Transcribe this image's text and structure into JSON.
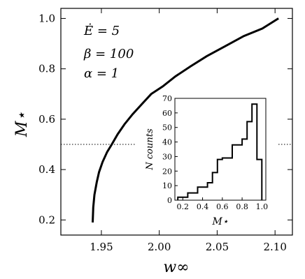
{
  "chart_data": [
    {
      "type": "line",
      "xlabel": "w∞",
      "ylabel": "M⋆",
      "xlim": [
        1.915,
        2.115
      ],
      "ylim": [
        0.14,
        1.04
      ],
      "x_ticks": [
        1.95,
        2.0,
        2.05,
        2.1
      ],
      "x_tick_labels": [
        "1.95",
        "2.00",
        "2.05",
        "2.10"
      ],
      "y_ticks": [
        0.2,
        0.4,
        0.6,
        0.8,
        1.0
      ],
      "y_tick_labels": [
        "0.2",
        "0.4",
        "0.6",
        "0.8",
        "1.0"
      ],
      "parameters": [
        "Ė = 5",
        "β = 100",
        "α = 1"
      ],
      "reference_line": {
        "y": 0.5,
        "style": "dotted"
      },
      "series": [
        {
          "points": [
            [
              1.9425,
              0.19
            ],
            [
              1.943,
              0.25
            ],
            [
              1.944,
              0.3
            ],
            [
              1.946,
              0.35
            ],
            [
              1.948,
              0.39
            ],
            [
              1.951,
              0.43
            ],
            [
              1.955,
              0.47
            ],
            [
              1.959,
              0.5
            ],
            [
              1.964,
              0.54
            ],
            [
              1.97,
              0.58
            ],
            [
              1.977,
              0.62
            ],
            [
              1.985,
              0.66
            ],
            [
              1.993,
              0.7
            ],
            [
              2.003,
              0.73
            ],
            [
              2.014,
              0.77
            ],
            [
              2.027,
              0.81
            ],
            [
              2.041,
              0.85
            ],
            [
              2.057,
              0.89
            ],
            [
              2.073,
              0.93
            ],
            [
              2.089,
              0.96
            ],
            [
              2.103,
              1.0
            ]
          ]
        }
      ]
    },
    {
      "type": "bar",
      "xlabel": "M⋆",
      "ylabel": "N counts",
      "xlim": [
        0.12,
        1.04
      ],
      "ylim": [
        0,
        70
      ],
      "x_ticks": [
        0.2,
        0.4,
        0.6,
        0.8,
        1.0
      ],
      "x_tick_labels": [
        "0.2",
        "0.4",
        "0.6",
        "0.8",
        "1.0"
      ],
      "y_ticks": [
        0,
        10,
        20,
        30,
        40,
        50,
        60,
        70
      ],
      "y_tick_labels": [
        "0",
        "10",
        "20",
        "30",
        "40",
        "50",
        "60",
        "70"
      ],
      "bin_edges": [
        0.15,
        0.2,
        0.25,
        0.3,
        0.35,
        0.4,
        0.45,
        0.5,
        0.55,
        0.6,
        0.65,
        0.7,
        0.75,
        0.8,
        0.85,
        0.9,
        0.95,
        1.0
      ],
      "values": [
        2,
        2,
        5,
        5,
        9,
        9,
        12,
        19,
        28,
        29,
        29,
        38,
        38,
        42,
        54,
        66,
        28
      ]
    }
  ]
}
